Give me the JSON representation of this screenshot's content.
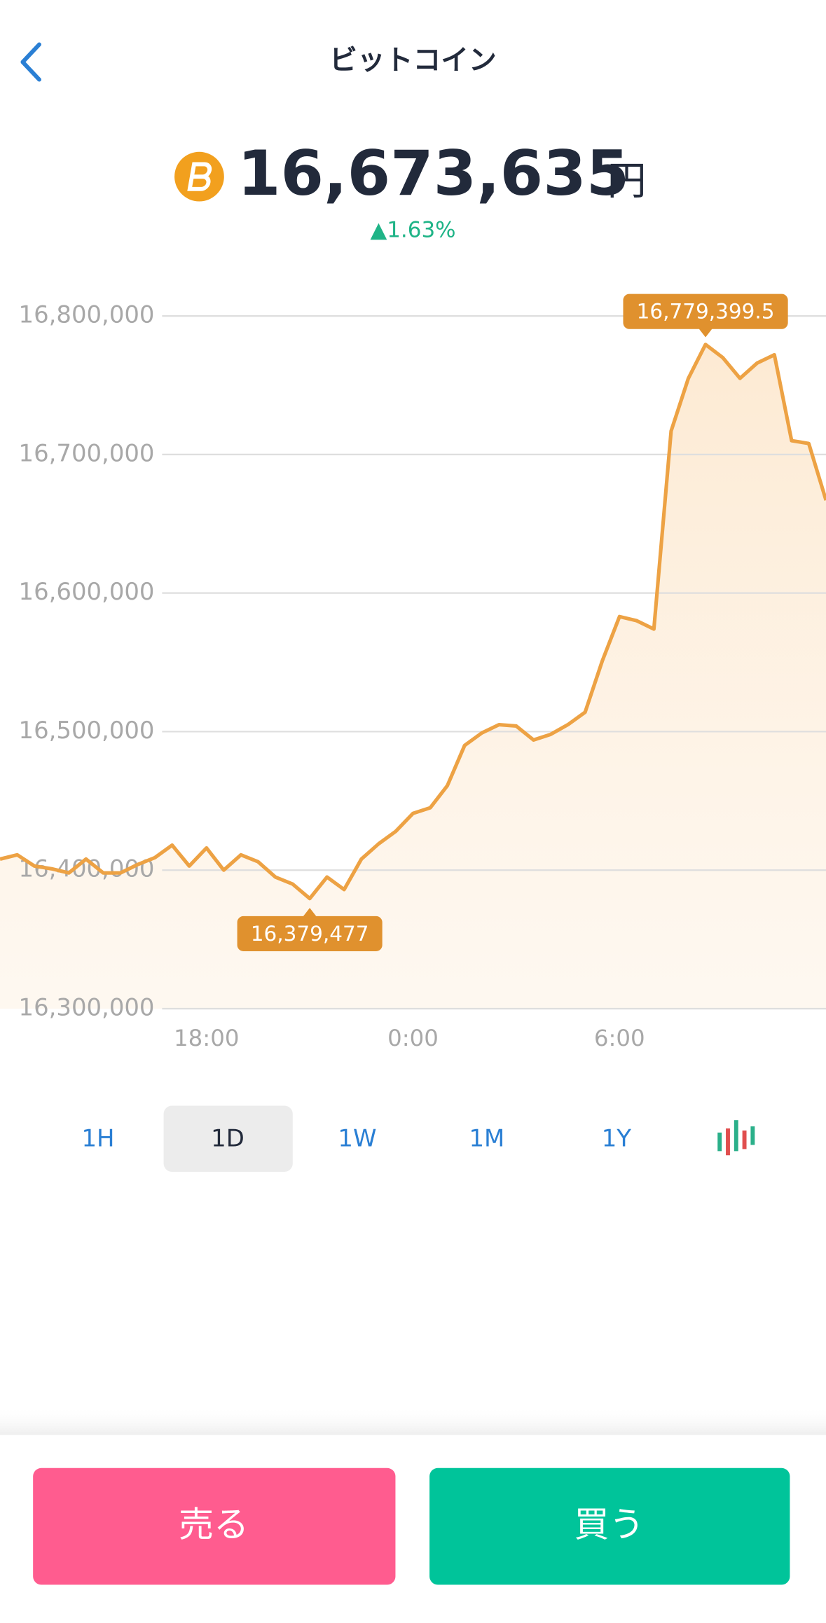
{
  "header": {
    "title": "ビットコイン"
  },
  "price": {
    "value": "16,673,635",
    "unit": "円",
    "change": "▲1.63%"
  },
  "chart_data": {
    "type": "line",
    "categories": [
      null,
      null,
      null,
      null,
      null,
      null,
      null,
      null,
      null,
      null,
      null,
      null,
      "18:00",
      null,
      null,
      null,
      null,
      null,
      null,
      null,
      null,
      null,
      null,
      null,
      "0:00",
      null,
      null,
      null,
      null,
      null,
      null,
      null,
      null,
      null,
      null,
      null,
      "6:00",
      null,
      null,
      null,
      null,
      null,
      null,
      null,
      null,
      null,
      null,
      null,
      null
    ],
    "series": [
      {
        "color": "#eda244",
        "values": [
          16408000,
          16411000,
          16403000,
          16401000,
          16398000,
          16408000,
          16398000,
          16398000,
          16404000,
          16409000,
          16418000,
          16403000,
          16416000,
          16400000,
          16411000,
          16406000,
          16395000,
          16390000,
          16379477,
          16395000,
          16386000,
          16408000,
          16419000,
          16428000,
          16441000,
          16445000,
          16461000,
          16490000,
          16499000,
          16505000,
          16504000,
          16494000,
          16498000,
          16505000,
          16514000,
          16551000,
          16583000,
          16580000,
          16574000,
          16717000,
          16755000,
          16779399.5,
          16770000,
          16755000,
          16766000,
          16772000,
          16710000,
          16708000,
          16667000
        ],
        "value_labels": [
          null,
          null,
          null,
          null,
          null,
          null,
          null,
          null,
          null,
          null,
          null,
          null,
          null,
          null,
          null,
          null,
          null,
          null,
          "16,379,477",
          null,
          null,
          null,
          null,
          null,
          null,
          null,
          null,
          null,
          null,
          null,
          null,
          null,
          null,
          null,
          null,
          null,
          null,
          null,
          null,
          null,
          null,
          "16,779,399.5",
          null,
          null,
          null,
          null,
          null,
          null,
          null
        ]
      }
    ],
    "ylim": [
      16300000,
      16800000
    ],
    "yticks": [
      {
        "value": 16300000,
        "label": "16,300,000"
      },
      {
        "value": 16400000,
        "label": "16,400,000"
      },
      {
        "value": 16500000,
        "label": "16,500,000"
      },
      {
        "value": 16600000,
        "label": "16,600,000"
      },
      {
        "value": 16700000,
        "label": "16,700,000"
      },
      {
        "value": 16800000,
        "label": "16,800,000"
      }
    ],
    "grid": true
  },
  "range_tabs": {
    "items": [
      "1H",
      "1D",
      "1W",
      "1M",
      "1Y"
    ],
    "selected": 1
  },
  "actions": {
    "sell": "売る",
    "buy": "買う"
  }
}
